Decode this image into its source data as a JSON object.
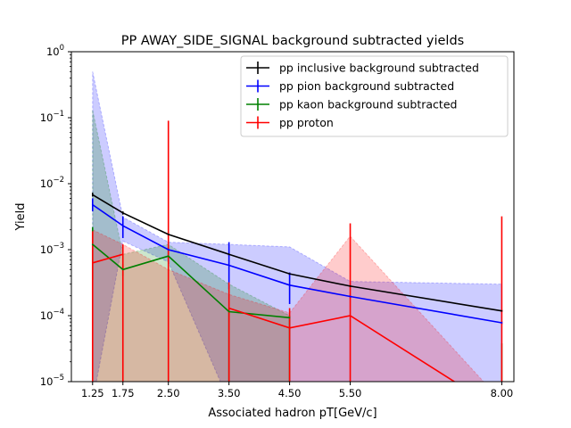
{
  "chart_data": {
    "type": "line",
    "title": "PP AWAY_SIDE_SIGNAL background subtracted yields",
    "xlabel": "Associated hadron pT[GeV/c]",
    "ylabel": "Yield",
    "yscale": "log",
    "xlim": [
      0.9,
      8.2
    ],
    "ylim": [
      1e-05,
      1
    ],
    "xticks": [
      1.25,
      1.75,
      2.5,
      3.5,
      4.5,
      5.5,
      8.0
    ],
    "xtick_labels": [
      "1.25",
      "1.75",
      "2.50",
      "3.50",
      "4.50",
      "5.50",
      "8.00"
    ],
    "yticks": [
      1e-05,
      0.0001,
      0.001,
      0.01,
      0.1,
      1
    ],
    "ytick_labels": [
      {
        "base": "10",
        "exp": "−5"
      },
      {
        "base": "10",
        "exp": "−4"
      },
      {
        "base": "10",
        "exp": "−3"
      },
      {
        "base": "10",
        "exp": "−2"
      },
      {
        "base": "10",
        "exp": "−1"
      },
      {
        "base": "10",
        "exp": "0"
      }
    ],
    "grid": false,
    "legend_position": "upper-right",
    "x": [
      1.25,
      1.75,
      2.5,
      3.5,
      4.5,
      5.5,
      8.0
    ],
    "series": [
      {
        "name": "pp inclusive background subtracted",
        "color": "#000000",
        "values": [
          0.0068,
          0.0036,
          0.0017,
          0.00085,
          0.00043,
          0.00028,
          0.000118
        ],
        "err_low": [
          0.0064,
          0.0034,
          0.0016,
          0.0008,
          0.00041,
          0.00027,
          0.000113
        ],
        "err_high": [
          0.0073,
          0.0038,
          0.0018,
          0.0009,
          0.00045,
          0.00029,
          0.000123
        ],
        "band": null
      },
      {
        "name": "pp pion background subtracted",
        "color": "#0000ff",
        "values": [
          0.0048,
          0.0023,
          0.001,
          0.00058,
          0.00029,
          0.000195,
          7.8e-05
        ],
        "err_low": [
          0.0038,
          0.0015,
          0.0009,
          0.00025,
          0.00015,
          0.000185,
          7.4e-05
        ],
        "err_high": [
          0.006,
          0.0032,
          0.0011,
          0.0013,
          0.00045,
          0.000205,
          8.2e-05
        ],
        "band": {
          "low": [
            5e-06,
            0.00135,
            0.00065,
            5e-06,
            5e-06,
            5e-06,
            5e-06
          ],
          "high": [
            0.5,
            0.0031,
            0.0013,
            0.0012,
            0.0011,
            0.00033,
            0.0003
          ]
        }
      },
      {
        "name": "pp kaon background subtracted",
        "color": "#008000",
        "values": [
          0.0012,
          0.0005,
          0.0008,
          0.000115,
          9.3e-05,
          null,
          null
        ],
        "err_low": [
          0.00035,
          0.0004,
          0.0007,
          5e-06,
          5e-06,
          null,
          5e-06
        ],
        "err_high": [
          0.0022,
          0.0006,
          0.0009,
          0.00012,
          0.0001,
          null,
          3.8e-05
        ],
        "band": {
          "low": [
            5e-06,
            5e-06,
            5e-06,
            5e-06,
            5e-06,
            null,
            null
          ],
          "high": [
            0.13,
            0.00085,
            0.0012,
            0.0003,
            0.0001,
            null,
            null
          ]
        }
      },
      {
        "name": "pp proton",
        "color": "#ff0000",
        "values": [
          0.00063,
          0.00085,
          null,
          0.00013,
          6.5e-05,
          0.0001,
          3.5e-06
        ],
        "err_low": [
          5e-06,
          5e-06,
          5e-06,
          5e-06,
          5e-06,
          5e-06,
          5e-06
        ],
        "err_high": [
          0.0019,
          0.0012,
          0.09,
          0.00032,
          0.00013,
          0.0025,
          0.0032
        ],
        "band": {
          "low": [
            5e-06,
            5e-06,
            5e-06,
            5e-06,
            5e-06,
            5e-06,
            5e-06
          ],
          "high": [
            0.002,
            0.0012,
            0.0005,
            0.00021,
            0.00011,
            0.0016,
            5e-06
          ]
        }
      }
    ]
  }
}
